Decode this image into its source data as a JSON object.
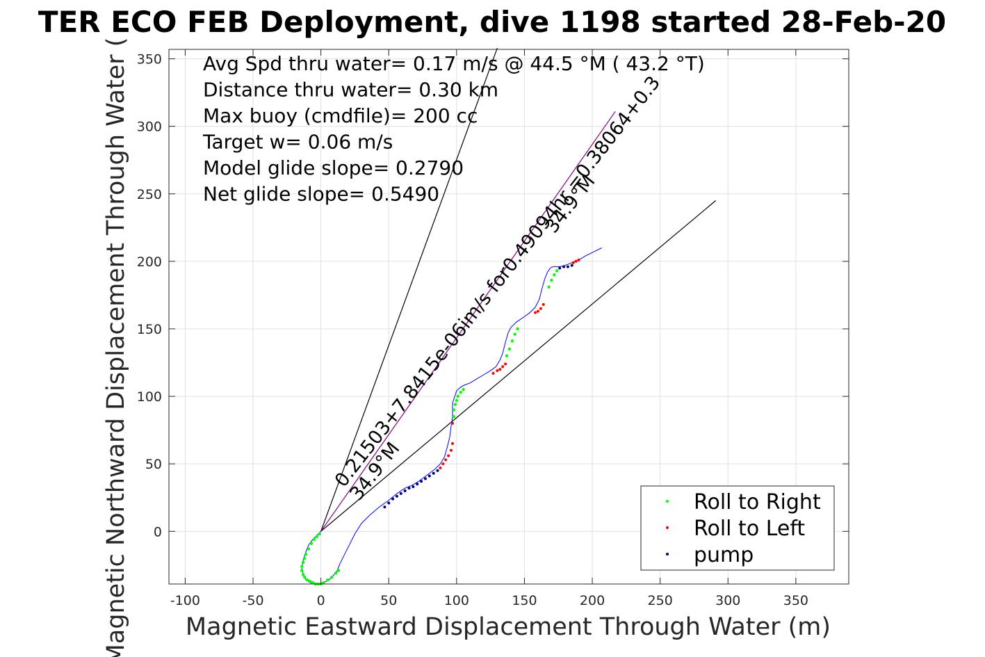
{
  "chart_data": {
    "type": "scatter",
    "title": "TER ECO FEB Deployment, dive 1198 started 28-Feb-20",
    "xlabel": "Magnetic Eastward Displacement Through Water (m)",
    "ylabel": "Magnetic Northward Displacement Through Water (",
    "xlim": [
      -112,
      389
    ],
    "ylim": [
      -39,
      357
    ],
    "xticks": [
      -100,
      -50,
      0,
      50,
      100,
      150,
      200,
      250,
      300,
      350
    ],
    "yticks": [
      0,
      50,
      100,
      150,
      200,
      250,
      300,
      350
    ],
    "grid": true,
    "annotations": [
      "Avg Spd thru water=  0.17 m/s @  44.5 °M ( 43.2 °T)",
      "Distance thru water=  0.30 km",
      "Max buoy (cmdfile)= 200 cc",
      "Target w= 0.06 m/s",
      "Model glide slope= 0.2790",
      "Net glide slope= 0.5490"
    ],
    "rotated_labels": [
      {
        "text": "0.21503+7.8415e-06im/s for0.49094hr =0.38064+0.3",
        "x": 17,
        "y": 32,
        "angle": -52
      },
      {
        "text": "34.9°M",
        "x": 28,
        "y": 22,
        "angle": -52
      },
      {
        "text": "34.9°M",
        "x": 172,
        "y": 220,
        "angle": -52
      }
    ],
    "legend": {
      "position": "bottom-right",
      "entries": [
        {
          "label": "Roll to Right",
          "color": "#00ff00"
        },
        {
          "label": "Roll to Left",
          "color": "#ff0000"
        },
        {
          "label": "pump",
          "color": "#000080"
        }
      ]
    },
    "reference_lines": [
      {
        "name": "wedge-left",
        "color": "#000000",
        "points": [
          [
            0,
            0
          ],
          [
            130,
            358
          ]
        ]
      },
      {
        "name": "wedge-right",
        "color": "#000000",
        "points": [
          [
            0,
            0
          ],
          [
            291,
            245
          ]
        ]
      },
      {
        "name": "mean-velocity",
        "color": "#800080",
        "points": [
          [
            0,
            0
          ],
          [
            217,
            311
          ]
        ]
      }
    ],
    "track": {
      "name": "glider-track",
      "color": "#0000ff",
      "x": [
        0,
        -3,
        -6,
        -9,
        -11,
        -13,
        -14,
        -13,
        -11,
        -8,
        -5,
        -2,
        2,
        6,
        9,
        12,
        14,
        17,
        21,
        25,
        30,
        36,
        43,
        50,
        56,
        62,
        67,
        72,
        76,
        80,
        84,
        88,
        91,
        93,
        95,
        96,
        97,
        97,
        97,
        98,
        99,
        100,
        102,
        105,
        110,
        115,
        120,
        125,
        129,
        132,
        134,
        136,
        138,
        140,
        142,
        144,
        147,
        150,
        154,
        158,
        161,
        163,
        165,
        167,
        169,
        171,
        173,
        176,
        180,
        185,
        190,
        195,
        201,
        207
      ],
      "y": [
        0,
        -3,
        -6,
        -10,
        -15,
        -21,
        -27,
        -32,
        -36,
        -38,
        -39,
        -39,
        -38,
        -36,
        -33,
        -29,
        -24,
        -18,
        -10,
        -2,
        6,
        12,
        18,
        23,
        28,
        32,
        34,
        37,
        40,
        43,
        46,
        50,
        55,
        62,
        70,
        78,
        85,
        90,
        95,
        98,
        101,
        104,
        106,
        108,
        110,
        113,
        116,
        119,
        122,
        127,
        132,
        140,
        147,
        151,
        153,
        155,
        157,
        159,
        162,
        166,
        172,
        180,
        187,
        192,
        195,
        196,
        196,
        196,
        197,
        199,
        201,
        204,
        207,
        210
      ]
    },
    "roll_right": {
      "x": [
        -1,
        -3,
        -5,
        -7,
        -9,
        -11,
        -12,
        -13,
        -14,
        -14,
        -13,
        -12,
        -10,
        -8,
        -6,
        -4,
        -2,
        0,
        2,
        5,
        8,
        11,
        13,
        98,
        98,
        99,
        100,
        101,
        103,
        105,
        137,
        139,
        141,
        143,
        145,
        168,
        170,
        172,
        174
      ],
      "y": [
        -2,
        -4,
        -6,
        -9,
        -13,
        -17,
        -20,
        -23,
        -26,
        -29,
        -32,
        -34,
        -36,
        -37,
        -38,
        -39,
        -39,
        -39,
        -38,
        -36,
        -34,
        -31,
        -29,
        85,
        90,
        94,
        97,
        100,
        103,
        105,
        130,
        135,
        141,
        146,
        150,
        181,
        186,
        190,
        193
      ]
    },
    "roll_left": {
      "x": [
        88,
        90,
        92,
        94,
        96,
        97,
        97,
        127,
        130,
        132,
        134,
        136,
        158,
        160,
        162,
        164,
        186,
        188,
        190
      ],
      "y": [
        47,
        50,
        53,
        56,
        60,
        65,
        80,
        117,
        119,
        120,
        122,
        124,
        162,
        163,
        165,
        168,
        199,
        200,
        201
      ]
    },
    "pump": {
      "x": [
        47,
        50,
        53,
        56,
        59,
        62,
        65,
        68,
        71,
        74,
        77,
        80,
        83,
        86,
        176,
        179,
        182,
        185
      ],
      "y": [
        18,
        21,
        24,
        26,
        28,
        30,
        32,
        33,
        35,
        37,
        39,
        41,
        43,
        45,
        195,
        196,
        196,
        197
      ]
    }
  }
}
